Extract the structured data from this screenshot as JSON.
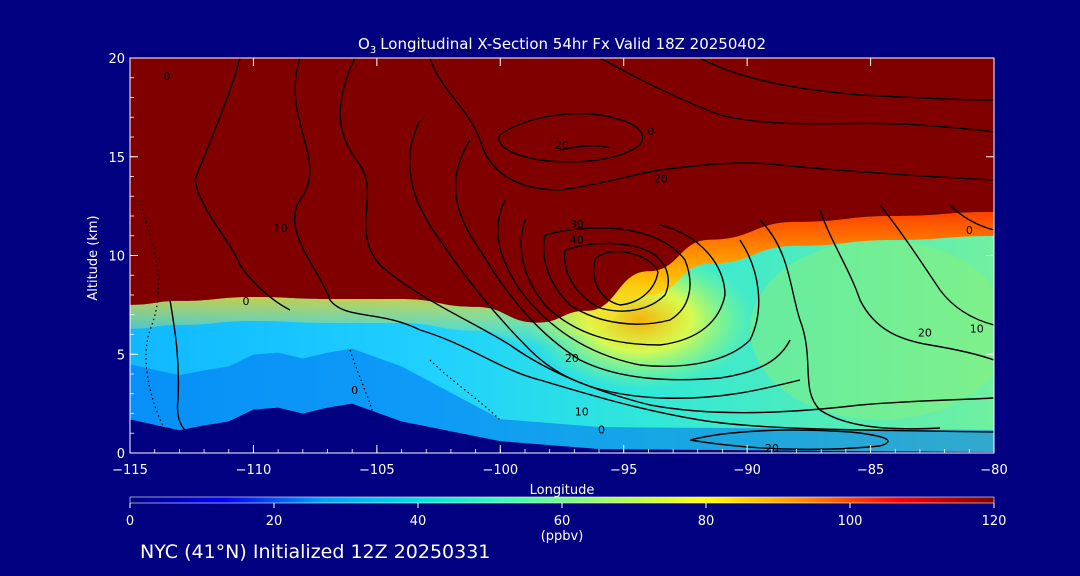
{
  "chart_data": {
    "type": "heatmap",
    "title": "Longitudinal X-Section 54hr  Fx Valid 18Z 20250402",
    "title_species": "O",
    "title_species_sub": "3",
    "xlabel": "Longitude",
    "ylabel": "Altitude (km)",
    "xlim": [
      -115,
      -80
    ],
    "ylim": [
      0,
      20
    ],
    "x_ticks": [
      -115,
      -110,
      -105,
      -100,
      -95,
      -90,
      -85,
      -80
    ],
    "y_ticks": [
      0,
      5,
      10,
      15,
      20
    ],
    "colorbar": {
      "label": "(ppbv)",
      "range": [
        0,
        120
      ],
      "ticks": [
        0,
        20,
        40,
        60,
        80,
        100,
        120
      ],
      "colors": [
        "#000080",
        "#0000ff",
        "#00a0ff",
        "#00e0e0",
        "#40ffb0",
        "#a0ff60",
        "#ffff00",
        "#ff9000",
        "#ff0000",
        "#800000"
      ]
    },
    "tropopause_km": [
      {
        "lon": -115,
        "km": 7.5
      },
      {
        "lon": -113,
        "km": 7.7
      },
      {
        "lon": -110,
        "km": 7.9
      },
      {
        "lon": -107,
        "km": 7.8
      },
      {
        "lon": -104,
        "km": 7.8
      },
      {
        "lon": -101,
        "km": 7.4
      },
      {
        "lon": -98.5,
        "km": 6.6
      },
      {
        "lon": -96.5,
        "km": 7.2
      },
      {
        "lon": -94,
        "km": 9.2
      },
      {
        "lon": -91.5,
        "km": 10.8
      },
      {
        "lon": -88,
        "km": 11.7
      },
      {
        "lon": -84,
        "km": 12.0
      },
      {
        "lon": -80,
        "km": 12.2
      }
    ],
    "terrain_km": [
      {
        "lon": -115,
        "km": 1.7
      },
      {
        "lon": -113,
        "km": 1.15
      },
      {
        "lon": -112,
        "km": 1.4
      },
      {
        "lon": -111,
        "km": 1.6
      },
      {
        "lon": -110,
        "km": 2.2
      },
      {
        "lon": -109,
        "km": 2.3
      },
      {
        "lon": -108,
        "km": 2.0
      },
      {
        "lon": -107,
        "km": 2.3
      },
      {
        "lon": -106,
        "km": 2.5
      },
      {
        "lon": -104,
        "km": 1.6
      },
      {
        "lon": -100,
        "km": 0.6
      },
      {
        "lon": -96,
        "km": 0.2
      },
      {
        "lon": -80,
        "km": 0.05
      }
    ],
    "contour_levels": [
      "0",
      "10",
      "20",
      "30",
      "40"
    ],
    "contour_labels": [
      {
        "text": "0",
        "lon": -110.3,
        "km": 7.7
      },
      {
        "text": "0",
        "lon": -113.5,
        "km": 19.1
      },
      {
        "text": "0",
        "lon": -105.9,
        "km": 3.2
      },
      {
        "text": "0",
        "lon": -93.9,
        "km": 16.3
      },
      {
        "text": "0",
        "lon": -95.9,
        "km": 1.2
      },
      {
        "text": "0",
        "lon": -81.0,
        "km": 11.3
      },
      {
        "text": "10",
        "lon": -108.9,
        "km": 11.4
      },
      {
        "text": "10",
        "lon": -96.7,
        "km": 2.1
      },
      {
        "text": "10",
        "lon": -80.7,
        "km": 6.3
      },
      {
        "text": "20",
        "lon": -97.5,
        "km": 15.6
      },
      {
        "text": "20",
        "lon": -93.5,
        "km": 13.9
      },
      {
        "text": "20",
        "lon": -97.1,
        "km": 4.8
      },
      {
        "text": "20",
        "lon": -82.8,
        "km": 6.1
      },
      {
        "text": "20",
        "lon": -89.0,
        "km": 0.25
      },
      {
        "text": "30",
        "lon": -96.9,
        "km": 11.6
      },
      {
        "text": "40",
        "lon": -96.9,
        "km": 10.8
      }
    ]
  },
  "footer_text": "NYC (41°N) Initialized 12Z 20250331"
}
